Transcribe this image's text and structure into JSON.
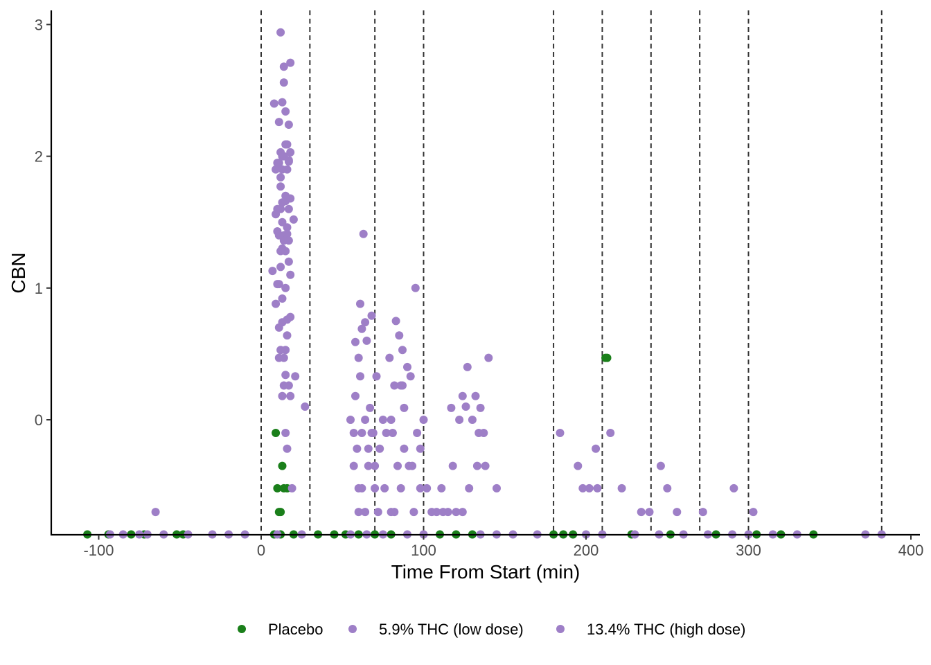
{
  "chart_data": {
    "type": "scatter",
    "title": "",
    "xlabel": "Time From Start (min)",
    "ylabel": "CBN",
    "xlim": [
      -130,
      405
    ],
    "ylim": [
      -0.87,
      3.12
    ],
    "xticks": [
      -100,
      0,
      100,
      200,
      300,
      400
    ],
    "xtick_labels": [
      "-100",
      "0",
      "100",
      "200",
      "300",
      "400"
    ],
    "yticks": [
      0,
      1,
      2,
      3
    ],
    "ytick_labels": [
      "0",
      "1",
      "2",
      "3"
    ],
    "grid": false,
    "vlines": [
      0,
      30,
      70,
      100,
      180,
      210,
      240,
      270,
      300,
      382
    ],
    "legend_position": "bottom",
    "series": [
      {
        "name": "Placebo",
        "color": "#1a7f1a",
        "points": [
          [
            -107,
            -0.87
          ],
          [
            -94,
            -0.87
          ],
          [
            -80,
            -0.87
          ],
          [
            -72,
            -0.87
          ],
          [
            -52,
            -0.87
          ],
          [
            -48,
            -0.87
          ],
          [
            8,
            -0.87
          ],
          [
            12,
            -0.87
          ],
          [
            20,
            -0.87
          ],
          [
            35,
            -0.87
          ],
          [
            45,
            -0.87
          ],
          [
            52,
            -0.87
          ],
          [
            60,
            -0.87
          ],
          [
            70,
            -0.87
          ],
          [
            80,
            -0.87
          ],
          [
            110,
            -0.87
          ],
          [
            120,
            -0.87
          ],
          [
            130,
            -0.87
          ],
          [
            180,
            -0.87
          ],
          [
            186,
            -0.87
          ],
          [
            192,
            -0.87
          ],
          [
            228,
            -0.87
          ],
          [
            252,
            -0.87
          ],
          [
            280,
            -0.87
          ],
          [
            305,
            -0.87
          ],
          [
            320,
            -0.87
          ],
          [
            340,
            -0.87
          ],
          [
            9,
            -0.1
          ],
          [
            10,
            -0.52
          ],
          [
            14,
            -0.52
          ],
          [
            16,
            -0.52
          ],
          [
            13,
            -0.35
          ],
          [
            11,
            -0.7
          ],
          [
            12,
            -0.7
          ],
          [
            212,
            0.47
          ],
          [
            213,
            0.47
          ]
        ]
      },
      {
        "name": "5.9% THC (low dose)",
        "color": "#9e7fc7",
        "points": [
          [
            -93,
            -0.87
          ],
          [
            -85,
            -0.87
          ],
          [
            -75,
            -0.87
          ],
          [
            -60,
            -0.87
          ],
          [
            -45,
            -0.87
          ],
          [
            -30,
            -0.87
          ],
          [
            -10,
            -0.87
          ],
          [
            25,
            -0.87
          ],
          [
            65,
            -0.87
          ],
          [
            90,
            -0.87
          ],
          [
            145,
            -0.87
          ],
          [
            155,
            -0.87
          ],
          [
            200,
            -0.87
          ],
          [
            230,
            -0.87
          ],
          [
            260,
            -0.87
          ],
          [
            290,
            -0.87
          ],
          [
            315,
            -0.87
          ],
          [
            372,
            -0.87
          ],
          [
            382,
            -0.87
          ],
          [
            -65,
            -0.7
          ],
          [
            7,
            1.13
          ],
          [
            8,
            2.4
          ],
          [
            9,
            1.56
          ],
          [
            9,
            0.88
          ],
          [
            10,
            1.95
          ],
          [
            10,
            1.43
          ],
          [
            11,
            2.26
          ],
          [
            11,
            1.03
          ],
          [
            11,
            0.47
          ],
          [
            12,
            2.94
          ],
          [
            12,
            1.77
          ],
          [
            12,
            1.28
          ],
          [
            12,
            0.53
          ],
          [
            13,
            2.41
          ],
          [
            13,
            2.0
          ],
          [
            13,
            1.65
          ],
          [
            13,
            0.92
          ],
          [
            13,
            0.18
          ],
          [
            14,
            2.68
          ],
          [
            14,
            2.56
          ],
          [
            14,
            2.0
          ],
          [
            14,
            1.36
          ],
          [
            14,
            0.26
          ],
          [
            15,
            2.34
          ],
          [
            15,
            1.7
          ],
          [
            15,
            1.0
          ],
          [
            15,
            0.34
          ],
          [
            15,
            -0.1
          ],
          [
            16,
            2.09
          ],
          [
            16,
            1.46
          ],
          [
            16,
            0.64
          ],
          [
            16,
            -0.22
          ],
          [
            17,
            2.24
          ],
          [
            17,
            1.96
          ],
          [
            17,
            1.6
          ],
          [
            17,
            1.2
          ],
          [
            18,
            2.71
          ],
          [
            18,
            2.03
          ],
          [
            18,
            1.1
          ],
          [
            18,
            0.78
          ],
          [
            20,
            1.52
          ],
          [
            21,
            0.33
          ],
          [
            27,
            0.1
          ],
          [
            19,
            -0.52
          ],
          [
            55,
            0.0
          ],
          [
            57,
            -0.1
          ],
          [
            57,
            -0.35
          ],
          [
            58,
            0.59
          ],
          [
            58,
            0.18
          ],
          [
            59,
            -0.22
          ],
          [
            60,
            0.47
          ],
          [
            60,
            -0.52
          ],
          [
            61,
            0.88
          ],
          [
            61,
            0.33
          ],
          [
            62,
            0.69
          ],
          [
            62,
            -0.1
          ],
          [
            63,
            1.41
          ],
          [
            64,
            0.74
          ],
          [
            64,
            -0.7
          ],
          [
            65,
            0.6
          ],
          [
            66,
            -0.22
          ],
          [
            67,
            0.09
          ],
          [
            68,
            0.79
          ],
          [
            69,
            -0.1
          ],
          [
            70,
            -0.35
          ],
          [
            70,
            -0.52
          ],
          [
            71,
            0.33
          ],
          [
            73,
            -0.22
          ],
          [
            75,
            0.0
          ],
          [
            77,
            -0.1
          ],
          [
            79,
            0.47
          ],
          [
            80,
            0.0
          ],
          [
            80,
            -0.7
          ],
          [
            81,
            -0.1
          ],
          [
            82,
            0.26
          ],
          [
            83,
            0.75
          ],
          [
            84,
            -0.35
          ],
          [
            85,
            0.64
          ],
          [
            86,
            -0.52
          ],
          [
            87,
            0.53
          ],
          [
            87,
            0.26
          ],
          [
            88,
            0.09
          ],
          [
            88,
            -0.22
          ],
          [
            90,
            0.4
          ],
          [
            91,
            -0.35
          ],
          [
            92,
            0.33
          ],
          [
            94,
            -0.7
          ],
          [
            95,
            1.0
          ],
          [
            96,
            -0.1
          ],
          [
            98,
            -0.22
          ],
          [
            100,
            0.0
          ],
          [
            102,
            -0.52
          ],
          [
            108,
            -0.7
          ],
          [
            111,
            -0.52
          ],
          [
            115,
            -0.7
          ],
          [
            117,
            0.09
          ],
          [
            118,
            -0.35
          ],
          [
            122,
            0.0
          ],
          [
            124,
            0.18
          ],
          [
            126,
            0.1
          ],
          [
            127,
            0.4
          ],
          [
            128,
            -0.52
          ],
          [
            130,
            0.0
          ],
          [
            132,
            0.18
          ],
          [
            133,
            -0.35
          ],
          [
            134,
            -0.1
          ],
          [
            135,
            0.09
          ],
          [
            137,
            -0.1
          ],
          [
            138,
            -0.35
          ],
          [
            140,
            0.47
          ],
          [
            145,
            -0.52
          ],
          [
            184,
            -0.1
          ],
          [
            195,
            -0.35
          ],
          [
            198,
            -0.52
          ],
          [
            202,
            -0.52
          ],
          [
            206,
            -0.22
          ],
          [
            207,
            -0.52
          ],
          [
            215,
            -0.1
          ],
          [
            222,
            -0.52
          ],
          [
            234,
            -0.7
          ],
          [
            239,
            -0.7
          ],
          [
            246,
            -0.35
          ],
          [
            250,
            -0.52
          ],
          [
            256,
            -0.7
          ],
          [
            272,
            -0.7
          ],
          [
            291,
            -0.52
          ],
          [
            303,
            -0.7
          ]
        ]
      },
      {
        "name": "13.4% THC (high dose)",
        "color": "#9e7fc7",
        "points": [
          [
            -70,
            -0.87
          ],
          [
            -20,
            -0.87
          ],
          [
            10,
            -0.87
          ],
          [
            55,
            -0.87
          ],
          [
            75,
            -0.87
          ],
          [
            100,
            -0.87
          ],
          [
            135,
            -0.87
          ],
          [
            170,
            -0.87
          ],
          [
            210,
            -0.87
          ],
          [
            245,
            -0.87
          ],
          [
            275,
            -0.87
          ],
          [
            300,
            -0.87
          ],
          [
            330,
            -0.87
          ],
          [
            9,
            1.9
          ],
          [
            10,
            1.6
          ],
          [
            10,
            1.03
          ],
          [
            11,
            1.95
          ],
          [
            11,
            1.4
          ],
          [
            11,
            0.7
          ],
          [
            12,
            2.03
          ],
          [
            12,
            1.84
          ],
          [
            12,
            1.6
          ],
          [
            12,
            1.16
          ],
          [
            13,
            1.9
          ],
          [
            13,
            1.5
          ],
          [
            13,
            1.3
          ],
          [
            13,
            0.74
          ],
          [
            14,
            2.0
          ],
          [
            14,
            1.4
          ],
          [
            14,
            0.47
          ],
          [
            15,
            2.09
          ],
          [
            15,
            1.66
          ],
          [
            15,
            1.28
          ],
          [
            15,
            0.53
          ],
          [
            16,
            1.9
          ],
          [
            16,
            1.41
          ],
          [
            16,
            0.76
          ],
          [
            17,
            1.97
          ],
          [
            17,
            1.36
          ],
          [
            17,
            0.26
          ],
          [
            18,
            1.68
          ],
          [
            18,
            0.18
          ],
          [
            60,
            -0.7
          ],
          [
            62,
            -0.52
          ],
          [
            64,
            0.0
          ],
          [
            66,
            -0.35
          ],
          [
            68,
            -0.1
          ],
          [
            72,
            -0.7
          ],
          [
            76,
            -0.52
          ],
          [
            82,
            -0.7
          ],
          [
            86,
            0.26
          ],
          [
            93,
            -0.35
          ],
          [
            98,
            -0.52
          ],
          [
            105,
            -0.7
          ],
          [
            112,
            -0.7
          ],
          [
            120,
            -0.7
          ],
          [
            124,
            -0.7
          ]
        ]
      }
    ]
  }
}
